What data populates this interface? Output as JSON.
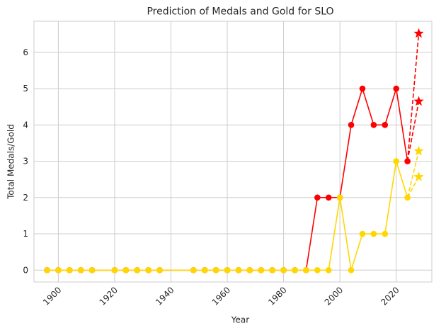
{
  "chart_data": {
    "type": "line",
    "title": "Prediction of Medals and Gold for SLO",
    "xlabel": "Year",
    "ylabel": "Total Medals/Gold",
    "xlim": [
      1891.35,
      2032.65
    ],
    "ylim": [
      -0.3265,
      6.8565
    ],
    "xticks": [
      1900,
      1920,
      1940,
      1960,
      1980,
      2000,
      2020
    ],
    "yticks": [
      0,
      1,
      2,
      3,
      4,
      5,
      6
    ],
    "grid": true,
    "colors": {
      "medals": "#ff0000",
      "gold": "#ffd700",
      "grid": "#cccccc",
      "frame": "#cccccc",
      "tick_text": "#262626"
    },
    "x": [
      1896,
      1900,
      1904,
      1908,
      1912,
      1920,
      1924,
      1928,
      1932,
      1936,
      1948,
      1952,
      1956,
      1960,
      1964,
      1968,
      1972,
      1976,
      1980,
      1984,
      1988,
      1992,
      1996,
      2000,
      2004,
      2008,
      2012,
      2016,
      2020,
      2024
    ],
    "series": [
      {
        "key": "medals",
        "values": [
          0,
          0,
          0,
          0,
          0,
          0,
          0,
          0,
          0,
          0,
          0,
          0,
          0,
          0,
          0,
          0,
          0,
          0,
          0,
          0,
          0,
          2,
          2,
          2,
          4,
          5,
          4,
          4,
          5,
          3
        ]
      },
      {
        "key": "gold",
        "values": [
          0,
          0,
          0,
          0,
          0,
          0,
          0,
          0,
          0,
          0,
          0,
          0,
          0,
          0,
          0,
          0,
          0,
          0,
          0,
          0,
          0,
          0,
          0,
          2,
          0,
          1,
          1,
          1,
          3,
          2
        ]
      }
    ],
    "predictions": [
      {
        "key": "medals",
        "from": [
          2024,
          3
        ],
        "points": [
          [
            2028,
            6.52
          ],
          [
            2028,
            4.65
          ]
        ]
      },
      {
        "key": "gold",
        "from": [
          2024,
          2
        ],
        "points": [
          [
            2028,
            3.28
          ],
          [
            2028,
            2.57
          ]
        ]
      }
    ]
  }
}
